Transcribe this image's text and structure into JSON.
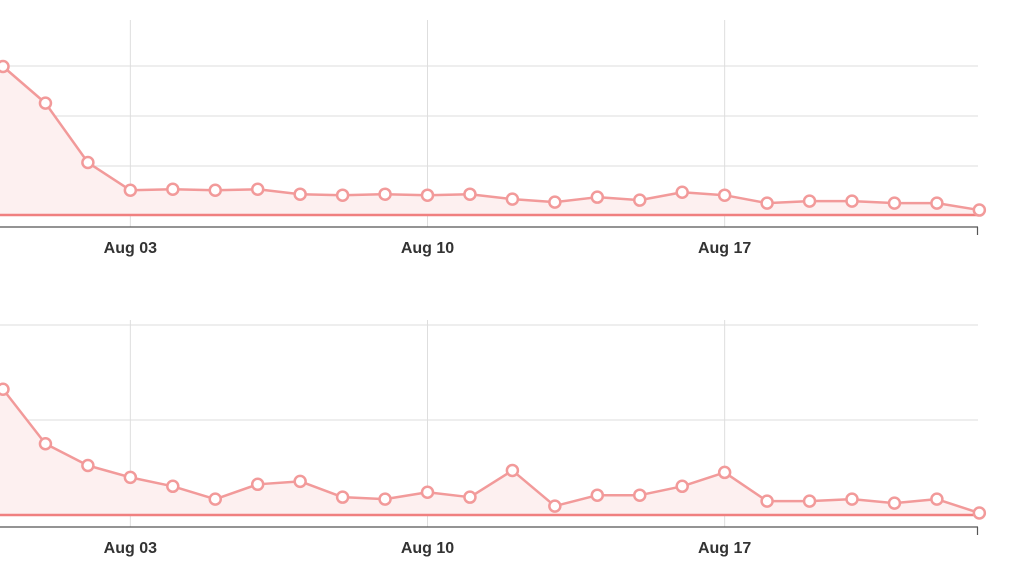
{
  "colors": {
    "series": "#f29a9a",
    "area": "#fdf0f0",
    "point_fill": "#ffffff",
    "baseline": "#f08080"
  },
  "chart_data": [
    {
      "type": "area",
      "title": "",
      "xlabel": "",
      "ylabel": "",
      "grid": true,
      "x_ticks": [
        "Aug 03",
        "Aug 10",
        "Aug 17"
      ],
      "x": [
        "Jul 31",
        "Aug 01",
        "Aug 02",
        "Aug 03",
        "Aug 04",
        "Aug 05",
        "Aug 06",
        "Aug 07",
        "Aug 08",
        "Aug 09",
        "Aug 10",
        "Aug 11",
        "Aug 12",
        "Aug 13",
        "Aug 14",
        "Aug 15",
        "Aug 16",
        "Aug 17",
        "Aug 18",
        "Aug 19",
        "Aug 20",
        "Aug 21",
        "Aug 22",
        "Aug 23"
      ],
      "values": [
        150,
        113,
        53,
        25,
        26,
        25,
        26,
        21,
        20,
        21,
        20,
        21,
        16,
        13,
        18,
        15,
        23,
        20,
        12,
        14,
        14,
        12,
        12,
        5
      ],
      "ylim": [
        0,
        200
      ]
    },
    {
      "type": "area",
      "title": "",
      "xlabel": "",
      "ylabel": "",
      "grid": true,
      "x_ticks": [
        "Aug 03",
        "Aug 10",
        "Aug 17"
      ],
      "x": [
        "Jul 31",
        "Aug 01",
        "Aug 02",
        "Aug 03",
        "Aug 04",
        "Aug 05",
        "Aug 06",
        "Aug 07",
        "Aug 08",
        "Aug 09",
        "Aug 10",
        "Aug 11",
        "Aug 12",
        "Aug 13",
        "Aug 14",
        "Aug 15",
        "Aug 16",
        "Aug 17",
        "Aug 18",
        "Aug 19",
        "Aug 20",
        "Aug 21",
        "Aug 22",
        "Aug 23"
      ],
      "values": [
        127,
        72,
        50,
        38,
        29,
        16,
        31,
        34,
        18,
        16,
        23,
        18,
        45,
        9,
        20,
        20,
        29,
        43,
        14,
        14,
        16,
        12,
        16,
        2
      ],
      "ylim": [
        0,
        200
      ]
    }
  ]
}
